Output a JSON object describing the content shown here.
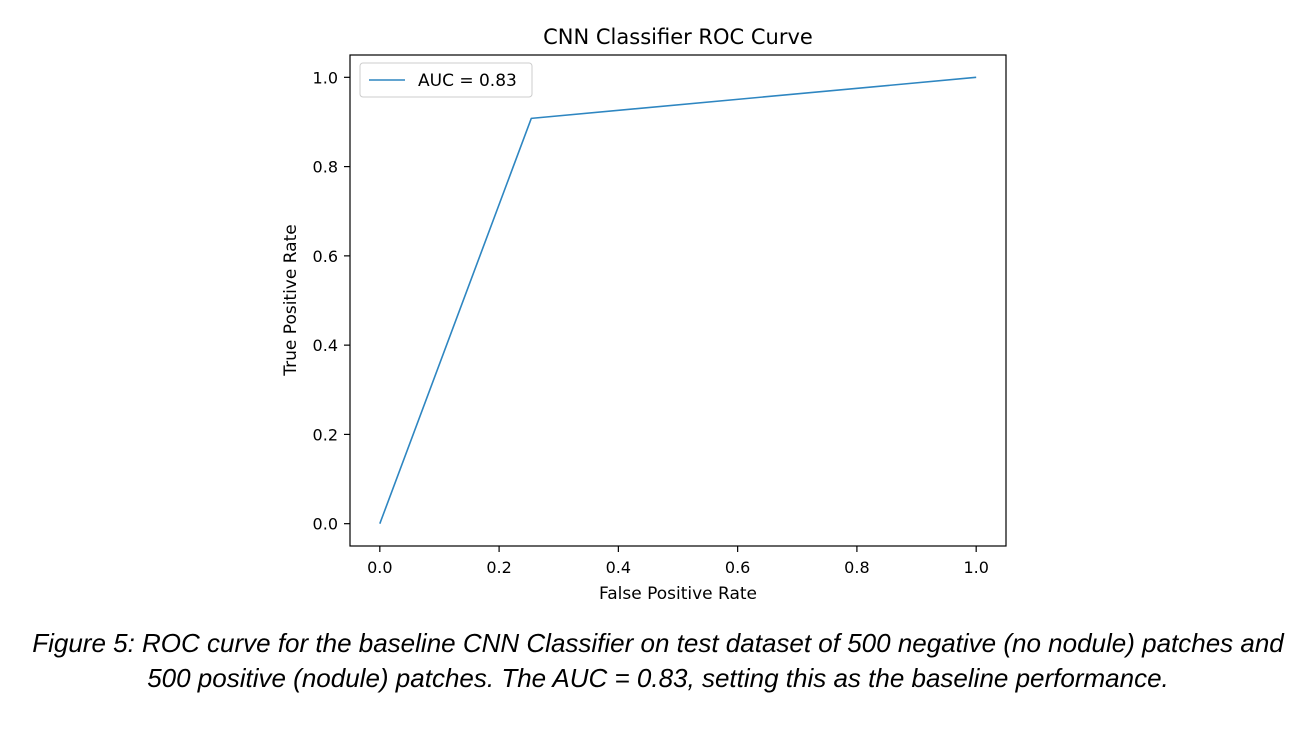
{
  "chart_data": {
    "type": "line",
    "title": "CNN Classifier ROC Curve",
    "xlabel": "False Positive Rate",
    "ylabel": "True Positive Rate",
    "xlim": [
      -0.05,
      1.05
    ],
    "ylim": [
      -0.05,
      1.05
    ],
    "x_ticks": [
      0.0,
      0.2,
      0.4,
      0.6,
      0.8,
      1.0
    ],
    "y_ticks": [
      0.0,
      0.2,
      0.4,
      0.6,
      0.8,
      1.0
    ],
    "x_tick_labels": [
      "0.0",
      "0.2",
      "0.4",
      "0.6",
      "0.8",
      "1.0"
    ],
    "y_tick_labels": [
      "0.0",
      "0.2",
      "0.4",
      "0.6",
      "0.8",
      "1.0"
    ],
    "grid": false,
    "legend_position": "top-left",
    "series": [
      {
        "name": "AUC = 0.83",
        "color": "#2e86c1",
        "x": [
          0.0,
          0.254,
          1.0
        ],
        "y": [
          0.0,
          0.908,
          1.0
        ]
      }
    ]
  },
  "caption": "Figure 5: ROC curve for the baseline CNN Classifier on test dataset of 500 negative (no nodule) patches and 500 positive (nodule) patches. The AUC = 0.83, setting this as the baseline performance."
}
